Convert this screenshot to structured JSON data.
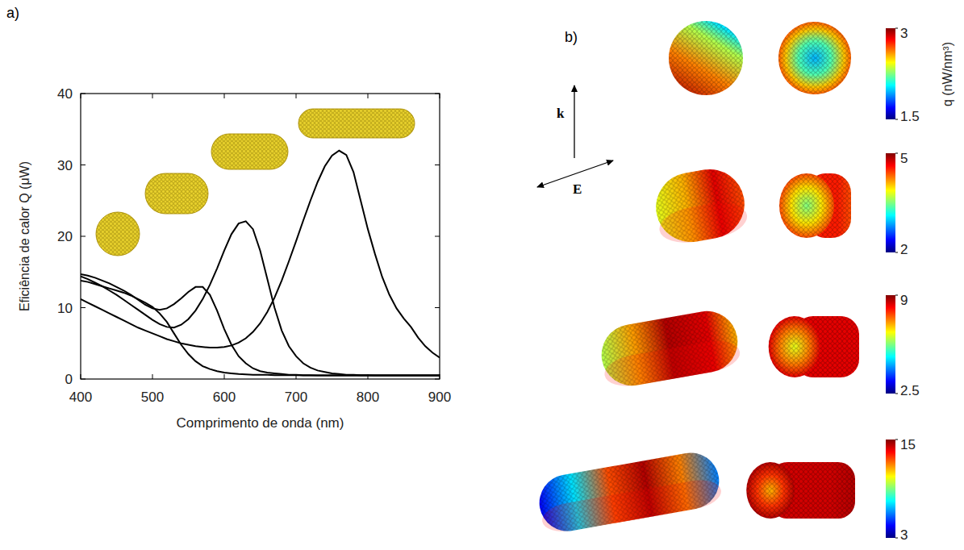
{
  "chart_data": [
    {
      "type": "line",
      "panel": "a)",
      "x_label": "Comprimento de onda (nm)",
      "y_label": "Eficiência de calor Q (μW)",
      "x": [
        400,
        410,
        420,
        430,
        440,
        450,
        460,
        470,
        480,
        490,
        500,
        510,
        520,
        530,
        540,
        550,
        560,
        570,
        580,
        590,
        600,
        610,
        620,
        630,
        640,
        650,
        660,
        670,
        680,
        690,
        700,
        710,
        720,
        730,
        740,
        750,
        760,
        770,
        780,
        790,
        800,
        810,
        820,
        830,
        840,
        850,
        860,
        870,
        880,
        890,
        900
      ],
      "series": [
        {
          "color": "#000000",
          "values": [
            13.8,
            13.6,
            13.3,
            13.0,
            12.7,
            12.4,
            12.1,
            11.7,
            11.2,
            10.7,
            10.1,
            9.2,
            8.0,
            6.4,
            4.8,
            3.5,
            2.5,
            1.8,
            1.4,
            1.1,
            0.9,
            0.8,
            0.7,
            0.65,
            0.6,
            0.6,
            0.6,
            0.55,
            0.55,
            0.55,
            0.55,
            0.5,
            0.5,
            0.5,
            0.5,
            0.5,
            0.5,
            0.5,
            0.5,
            0.5,
            0.5,
            0.5,
            0.5,
            0.5,
            0.5,
            0.5,
            0.5,
            0.5,
            0.5,
            0.5,
            0.5
          ]
        },
        {
          "color": "#000000",
          "values": [
            14.7,
            14.5,
            14.2,
            13.8,
            13.4,
            12.9,
            12.4,
            11.8,
            11.1,
            10.4,
            9.9,
            9.7,
            9.9,
            10.5,
            11.3,
            12.2,
            12.9,
            12.9,
            11.8,
            9.6,
            7.0,
            4.8,
            3.2,
            2.2,
            1.5,
            1.1,
            0.9,
            0.8,
            0.7,
            0.6,
            0.6,
            0.55,
            0.55,
            0.5,
            0.5,
            0.5,
            0.5,
            0.5,
            0.5,
            0.5,
            0.5,
            0.5,
            0.5,
            0.5,
            0.5,
            0.5,
            0.5,
            0.5,
            0.5,
            0.5,
            0.5
          ]
        },
        {
          "color": "#000000",
          "values": [
            14.4,
            14.0,
            13.5,
            13.0,
            12.4,
            11.8,
            11.1,
            10.4,
            9.7,
            9.0,
            8.3,
            7.7,
            7.3,
            7.2,
            7.6,
            8.4,
            9.6,
            11.2,
            13.2,
            15.5,
            18.0,
            20.3,
            21.8,
            22.1,
            21.0,
            18.0,
            14.0,
            10.0,
            6.8,
            4.6,
            3.2,
            2.2,
            1.6,
            1.2,
            1.0,
            0.8,
            0.7,
            0.6,
            0.6,
            0.55,
            0.55,
            0.5,
            0.5,
            0.5,
            0.5,
            0.5,
            0.5,
            0.5,
            0.5,
            0.5,
            0.5
          ]
        },
        {
          "color": "#000000",
          "values": [
            11.2,
            10.7,
            10.2,
            9.7,
            9.2,
            8.7,
            8.2,
            7.7,
            7.2,
            6.8,
            6.4,
            6.0,
            5.6,
            5.3,
            5.0,
            4.8,
            4.6,
            4.5,
            4.4,
            4.4,
            4.5,
            4.7,
            5.1,
            5.7,
            6.6,
            7.8,
            9.4,
            11.4,
            13.8,
            16.5,
            19.3,
            22.2,
            25.0,
            27.6,
            29.8,
            31.3,
            32.0,
            31.4,
            29.0,
            25.0,
            21.0,
            17.5,
            14.3,
            11.8,
            9.9,
            8.5,
            7.3,
            5.8,
            4.6,
            3.7,
            3.0
          ]
        }
      ],
      "xlim": [
        400,
        900
      ],
      "xticks": [
        400,
        500,
        600,
        700,
        800,
        900
      ],
      "ylim": [
        0,
        40
      ],
      "yticks": [
        0,
        10,
        20,
        30,
        40
      ],
      "grid": false
    },
    {
      "type": "heatmap",
      "panel": "b)",
      "vectors": [
        "k",
        "E"
      ],
      "colorbar_label": "q (nW/nm³)",
      "colorbars": [
        {
          "range": [
            1.5,
            3
          ],
          "ticks": [
            1.5,
            3
          ]
        },
        {
          "range": [
            2,
            5
          ],
          "ticks": [
            2,
            5
          ]
        },
        {
          "range": [
            2.5,
            9
          ],
          "ticks": [
            2.5,
            9
          ]
        },
        {
          "range": [
            3,
            15
          ],
          "ticks": [
            3,
            15
          ]
        }
      ]
    }
  ]
}
